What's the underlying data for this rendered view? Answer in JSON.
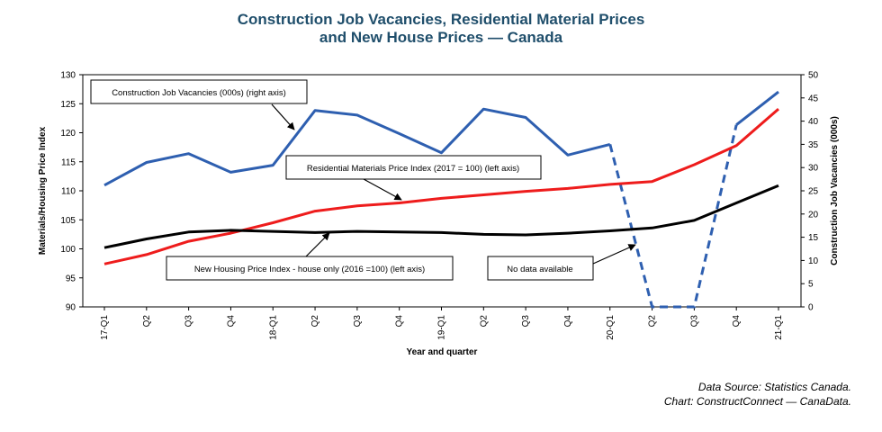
{
  "title_line1": "Construction Job Vacancies, Residential Material Prices",
  "title_line2": "and New House Prices — Canada",
  "source_line1": "Data Source: Statistics Canada.",
  "source_line2": "Chart: ConstructConnect — CanaData.",
  "chart_data": {
    "type": "line",
    "xlabel": "Year and quarter",
    "ylabel_left": "Materials/Housing Price Index",
    "ylabel_right": "Construction Job Vacancies (000s)",
    "ylim_left": [
      90,
      130
    ],
    "ylim_right": [
      0,
      50
    ],
    "yticks_left": [
      90,
      95,
      100,
      105,
      110,
      115,
      120,
      125,
      130
    ],
    "yticks_right": [
      0,
      5,
      10,
      15,
      20,
      25,
      30,
      35,
      40,
      45,
      50
    ],
    "categories": [
      "17-Q1",
      "Q2",
      "Q3",
      "Q4",
      "18-Q1",
      "Q2",
      "Q3",
      "Q4",
      "19-Q1",
      "Q2",
      "Q3",
      "Q4",
      "20-Q1",
      "Q2",
      "Q3",
      "Q4",
      "21-Q1"
    ],
    "series": [
      {
        "name": "Construction Job Vacancies (000s) (right axis)",
        "axis": "right",
        "color": "#2e5fb0",
        "values": [
          26.2,
          31.1,
          33.0,
          29.0,
          30.5,
          42.3,
          41.3,
          37.3,
          33.2,
          42.6,
          40.8,
          32.7,
          35.0,
          null,
          null,
          39.2,
          46.3
        ],
        "gap_segments": [
          [
            12,
            13,
            0,
            "dashed"
          ],
          [
            13,
            14,
            0,
            "dashed"
          ],
          [
            14,
            15,
            0,
            "dashed"
          ]
        ],
        "gap_values": {
          "13": 0,
          "14": 0
        }
      },
      {
        "name": "Residential Materials Price Index (2017 = 100) (left axis)",
        "axis": "left",
        "color": "#ee1c1c",
        "values": [
          97.4,
          99.0,
          101.3,
          102.7,
          104.5,
          106.5,
          107.4,
          107.9,
          108.7,
          109.3,
          109.9,
          110.4,
          111.1,
          111.6,
          114.5,
          117.8,
          124.1
        ]
      },
      {
        "name": "New Housing Price Index - house only (2016 =100) (left axis)",
        "axis": "left",
        "color": "#000000",
        "values": [
          100.2,
          101.7,
          102.9,
          103.2,
          103.0,
          102.8,
          103.0,
          102.9,
          102.8,
          102.5,
          102.4,
          102.7,
          103.1,
          103.6,
          104.9,
          107.9,
          110.9
        ]
      }
    ],
    "annotations": [
      "Construction Job Vacancies (000s) (right axis)",
      "Residential Materials Price Index (2017 = 100) (left axis)",
      "New Housing Price Index - house only (2016 =100) (left axis)",
      "No data available"
    ],
    "grid": false
  }
}
